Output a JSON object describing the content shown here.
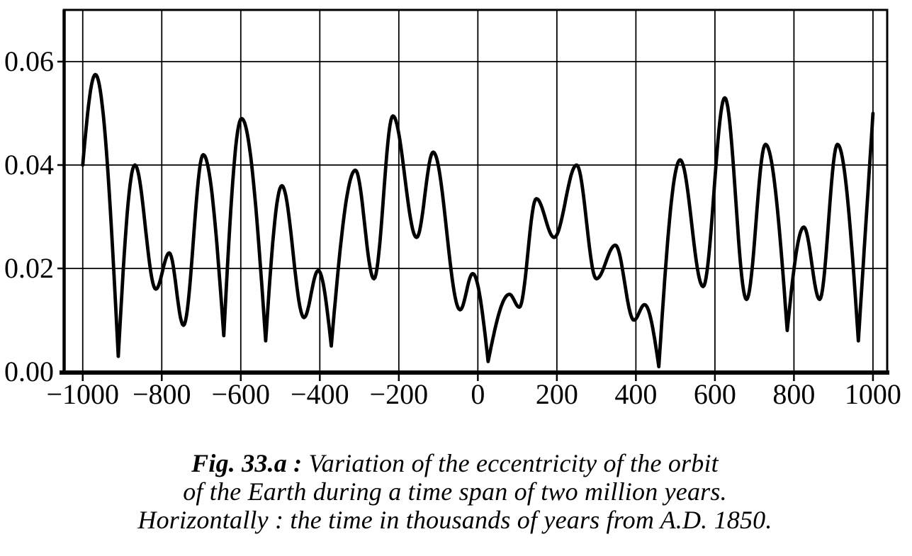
{
  "figure": {
    "caption": {
      "label": "Fig. 33.a :",
      "line1": " Variation of the eccentricity of the orbit",
      "line2": "of the Earth during a time span of two million years.",
      "line3": "Horizontally : the time in thousands of years from A.D. 1850."
    }
  },
  "chart_data": {
    "type": "line",
    "title": "",
    "xlabel": "time in thousands of years from A.D. 1850",
    "ylabel": "eccentricity of the orbit of the Earth",
    "xlim": [
      -1048,
      1036
    ],
    "ylim": [
      0,
      0.07
    ],
    "grid": true,
    "legend_position": "none",
    "background": "#ffffff",
    "line_color": "#000000",
    "grid_color": "#000000",
    "x_ticks": [
      -1000,
      -800,
      -600,
      -400,
      -200,
      0,
      200,
      400,
      600,
      800,
      1000
    ],
    "x_tick_labels": [
      "−1000",
      "−800",
      "−600",
      "−400",
      "−200",
      "0",
      "200",
      "400",
      "600",
      "800",
      "1000"
    ],
    "y_ticks": [
      0,
      0.02,
      0.04,
      0.06
    ],
    "y_tick_labels": [
      "0.00",
      "0.02",
      "0.04",
      "0.06"
    ],
    "series": [
      {
        "name": "eccentricity",
        "points": [
          [
            -1000,
            0.04,
            "s"
          ],
          [
            -968,
            0.0575,
            "r"
          ],
          [
            -910,
            0.003,
            "s"
          ],
          [
            -868,
            0.04,
            "r"
          ],
          [
            -815,
            0.016,
            "r"
          ],
          [
            -781,
            0.023,
            "r"
          ],
          [
            -745,
            0.009,
            "r"
          ],
          [
            -695,
            0.042,
            "r"
          ],
          [
            -643,
            0.007,
            "s"
          ],
          [
            -598,
            0.049,
            "r"
          ],
          [
            -537,
            0.006,
            "s"
          ],
          [
            -496,
            0.036,
            "r"
          ],
          [
            -440,
            0.0105,
            "r"
          ],
          [
            -404,
            0.0196,
            "r"
          ],
          [
            -371,
            0.005,
            "s"
          ],
          [
            -310,
            0.039,
            "r"
          ],
          [
            -263,
            0.018,
            "r"
          ],
          [
            -215,
            0.0495,
            "r"
          ],
          [
            -155,
            0.026,
            "r"
          ],
          [
            -113,
            0.0425,
            "r"
          ],
          [
            -45,
            0.012,
            "r"
          ],
          [
            -13,
            0.019,
            "r"
          ],
          [
            26,
            0.002,
            "s"
          ],
          [
            80,
            0.015,
            "r"
          ],
          [
            105,
            0.0125,
            "r"
          ],
          [
            148,
            0.0335,
            "r"
          ],
          [
            193,
            0.026,
            "r"
          ],
          [
            250,
            0.04,
            "r"
          ],
          [
            300,
            0.018,
            "r"
          ],
          [
            348,
            0.0245,
            "r"
          ],
          [
            395,
            0.01,
            "r"
          ],
          [
            422,
            0.013,
            "r"
          ],
          [
            458,
            0.001,
            "s"
          ],
          [
            512,
            0.041,
            "r"
          ],
          [
            570,
            0.0165,
            "r"
          ],
          [
            625,
            0.053,
            "r"
          ],
          [
            680,
            0.014,
            "r"
          ],
          [
            728,
            0.044,
            "r"
          ],
          [
            783,
            0.008,
            "s"
          ],
          [
            825,
            0.028,
            "r"
          ],
          [
            865,
            0.014,
            "r"
          ],
          [
            910,
            0.044,
            "r"
          ],
          [
            963,
            0.006,
            "s"
          ],
          [
            1000,
            0.05,
            "s"
          ]
        ]
      }
    ]
  }
}
